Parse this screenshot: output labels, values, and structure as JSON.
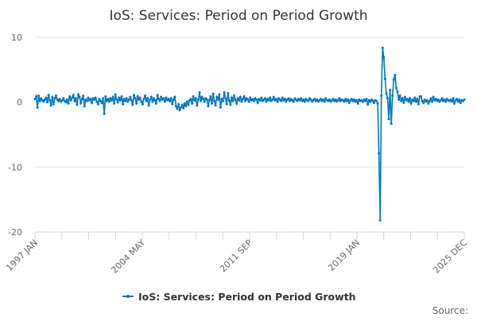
{
  "chart_data": {
    "type": "line",
    "title": "IoS: Services: Period on Period Growth",
    "xlabel": "",
    "ylabel": "",
    "x_start": "1997 JAN",
    "x_end": "2025 DEC",
    "x_frequency": "monthly",
    "x_tick_labels": [
      "1997 JAN",
      "2004 MAY",
      "2011 SEP",
      "2019 JAN",
      "2025 DEC"
    ],
    "y_ticks": [
      10,
      0,
      -10,
      -20
    ],
    "ylim": [
      -20,
      10
    ],
    "grid": "horizontal",
    "legend_position": "bottom",
    "line_color": "#0077c0",
    "series": [
      {
        "name": "IoS: Services: Period on Period Growth",
        "values": [
          0.5,
          0.9,
          -0.8,
          1.0,
          0.2,
          0.6,
          0.3,
          0.1,
          0.4,
          0.7,
          0.0,
          1.1,
          0.3,
          -0.5,
          0.8,
          -0.3,
          0.6,
          1.0,
          0.4,
          0.2,
          0.5,
          0.1,
          0.3,
          0.6,
          0.2,
          0.0,
          0.4,
          -0.2,
          0.9,
          0.3,
          0.7,
          1.1,
          0.2,
          0.6,
          -0.4,
          1.2,
          0.8,
          -0.2,
          0.5,
          1.0,
          -0.6,
          0.4,
          0.2,
          0.7,
          0.3,
          0.5,
          -0.1,
          0.6,
          0.4,
          0.7,
          0.1,
          -0.3,
          0.5,
          0.2,
          -0.1,
          0.6,
          -1.8,
          0.9,
          0.2,
          0.5,
          0.1,
          0.6,
          0.3,
          0.8,
          -0.2,
          1.2,
          0.4,
          0.0,
          0.7,
          0.3,
          0.9,
          -0.3,
          0.5,
          0.2,
          0.6,
          0.1,
          0.4,
          0.8,
          0.3,
          -0.4,
          1.1,
          0.6,
          -0.2,
          0.9,
          0.4,
          0.7,
          0.1,
          -0.3,
          0.5,
          1.0,
          0.2,
          0.6,
          -0.5,
          0.4,
          0.8,
          0.1,
          0.6,
          0.3,
          -0.2,
          1.1,
          0.5,
          0.2,
          0.8,
          0.4,
          0.6,
          0.1,
          0.7,
          0.3,
          0.5,
          0.2,
          0.6,
          -0.3,
          0.4,
          0.8,
          -0.6,
          -1.0,
          -0.3,
          -1.2,
          -0.8,
          -0.4,
          -0.9,
          -0.2,
          -0.6,
          0.1,
          -0.4,
          0.3,
          0.5,
          -0.2,
          0.9,
          0.3,
          0.6,
          -0.5,
          0.4,
          1.5,
          0.2,
          0.8,
          0.5,
          0.1,
          0.6,
          0.4,
          -0.6,
          0.3,
          0.9,
          -0.2,
          1.3,
          0.2,
          -0.5,
          0.8,
          0.4,
          1.2,
          -0.8,
          0.5,
          0.2,
          1.5,
          0.6,
          -0.3,
          1.4,
          0.3,
          -0.4,
          0.7,
          0.2,
          1.0,
          0.4,
          -0.2,
          0.6,
          0.3,
          0.8,
          0.1,
          0.5,
          0.9,
          0.2,
          0.6,
          0.4,
          0.1,
          0.7,
          0.3,
          0.5,
          0.2,
          0.6,
          0.4,
          -0.1,
          0.5,
          0.3,
          0.7,
          0.2,
          0.4,
          0.6,
          0.1,
          0.5,
          0.3,
          0.7,
          0.2,
          0.4,
          0.8,
          0.3,
          0.5,
          0.1,
          0.6,
          0.4,
          0.2,
          0.7,
          0.3,
          0.5,
          0.1,
          0.4,
          0.6,
          0.2,
          0.5,
          0.3,
          0.1,
          0.6,
          0.4,
          0.2,
          0.5,
          0.3,
          0.6,
          0.2,
          0.4,
          0.1,
          0.5,
          0.3,
          0.2,
          0.6,
          0.4,
          0.1,
          0.3,
          0.5,
          0.2,
          0.4,
          0.1,
          0.3,
          0.5,
          0.2,
          0.4,
          0.1,
          0.6,
          0.3,
          0.2,
          0.4,
          0.1,
          0.3,
          0.5,
          0.2,
          0.4,
          0.1,
          0.3,
          0.6,
          0.2,
          0.4,
          0.3,
          0.1,
          0.5,
          0.2,
          0.4,
          -0.1,
          0.3,
          0.5,
          0.2,
          0.4,
          0.1,
          0.3,
          -0.2,
          0.4,
          0.2,
          0.3,
          0.1,
          0.4,
          0.2,
          0.5,
          -0.3,
          0.3,
          0.1,
          0.4,
          0.2,
          -0.1,
          0.3,
          0.2,
          -0.2,
          -7.9,
          -18.2,
          1.0,
          8.4,
          6.9,
          3.6,
          1.3,
          0.6,
          -2.6,
          1.9,
          -3.3,
          1.0,
          3.5,
          4.2,
          2.2,
          1.6,
          0.4,
          1.0,
          0.2,
          0.6,
          -0.1,
          0.8,
          0.3,
          0.5,
          0.1,
          0.6,
          -0.2,
          0.4,
          0.2,
          0.7,
          0.1,
          0.5,
          -0.3,
          0.9,
          0.9,
          0.2,
          -0.1,
          0.4,
          0.1,
          0.3,
          -0.2,
          0.2,
          0.6,
          0.1,
          0.8,
          0.3,
          0.5,
          0.2,
          0.4,
          0.1,
          0.3,
          0.6,
          0.2,
          0.4,
          0.1,
          0.5,
          0.3,
          0.2,
          0.4,
          0.1,
          0.6,
          -0.2,
          0.3,
          0.5,
          0.1,
          0.4,
          -0.1,
          0.3,
          0.2,
          0.4
        ]
      }
    ],
    "source_label": "Source:"
  }
}
